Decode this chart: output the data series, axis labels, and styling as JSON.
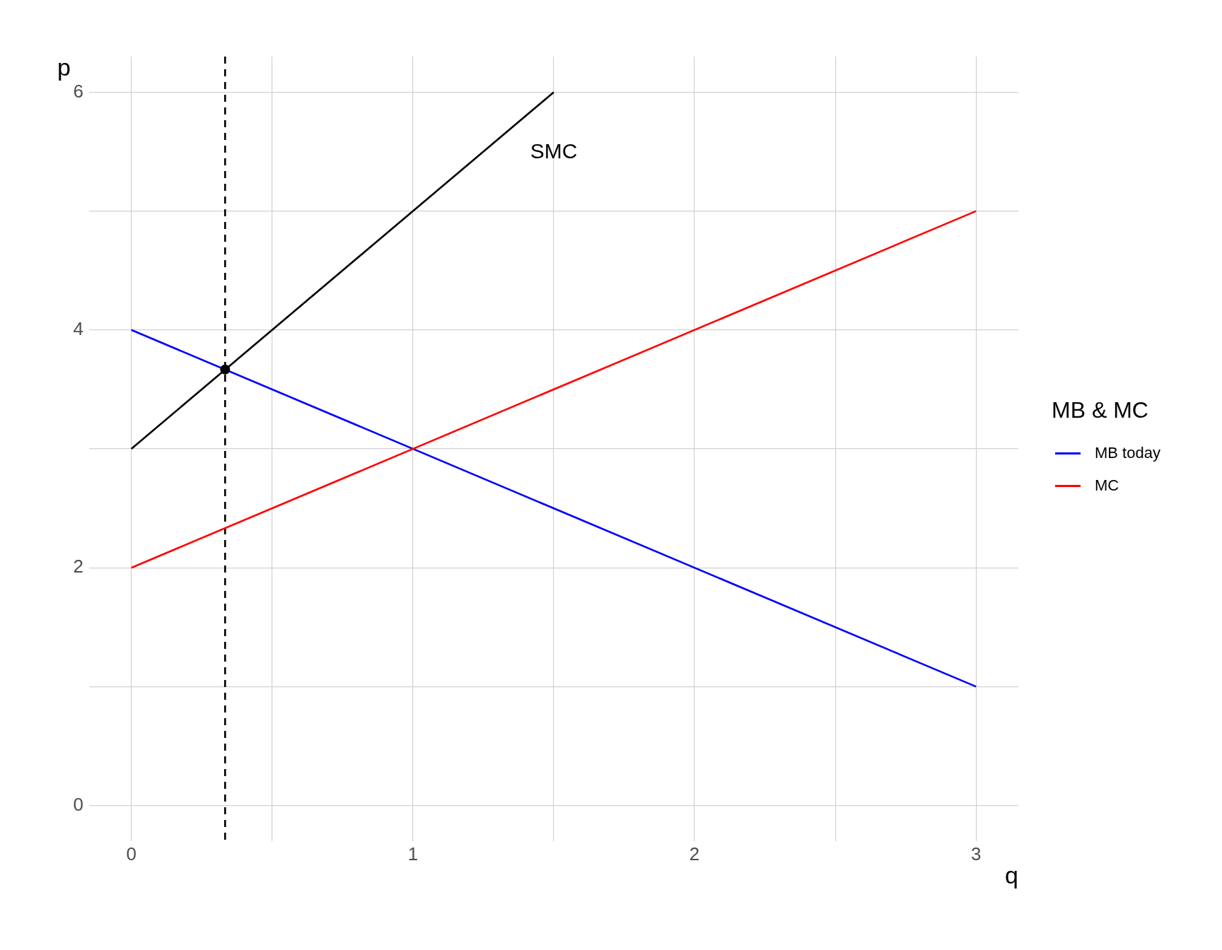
{
  "chart_data": {
    "type": "line",
    "xlabel": "q",
    "ylabel": "p",
    "legend_title": "MB & MC",
    "annotations": [
      "SMC"
    ],
    "series": [
      {
        "name": "MB today",
        "color": "#0000ff",
        "x": [
          0,
          3
        ],
        "values": [
          4,
          1
        ]
      },
      {
        "name": "MC",
        "color": "#ff0000",
        "x": [
          0,
          3
        ],
        "values": [
          2,
          5
        ]
      },
      {
        "color": "#000000",
        "x": [
          0,
          1.5
        ],
        "values": [
          3,
          6
        ]
      },
      {
        "type": "scatter",
        "color": "#000000",
        "x": [
          0.333
        ],
        "values": [
          3.667
        ],
        "marker": "circle"
      }
    ],
    "xlim": [
      -0.15,
      3.15
    ],
    "ylim": [
      -0.3,
      6.3
    ],
    "xticks": [
      0,
      {
        "value": 0.5,
        "label": null
      },
      1,
      {
        "value": 1.5,
        "label": null
      },
      2,
      {
        "value": 2.5,
        "label": null
      },
      3
    ],
    "yticks": [
      0,
      {
        "value": 1,
        "label": null
      },
      2,
      {
        "value": 3,
        "label": null
      },
      4,
      {
        "value": 5,
        "label": null
      },
      6
    ],
    "ref_lines": [
      {
        "axis": "x",
        "value": 0.333,
        "line_style": "dashed",
        "color": "#000000"
      }
    ],
    "grid": true,
    "legend": "right",
    "marker": "none"
  }
}
